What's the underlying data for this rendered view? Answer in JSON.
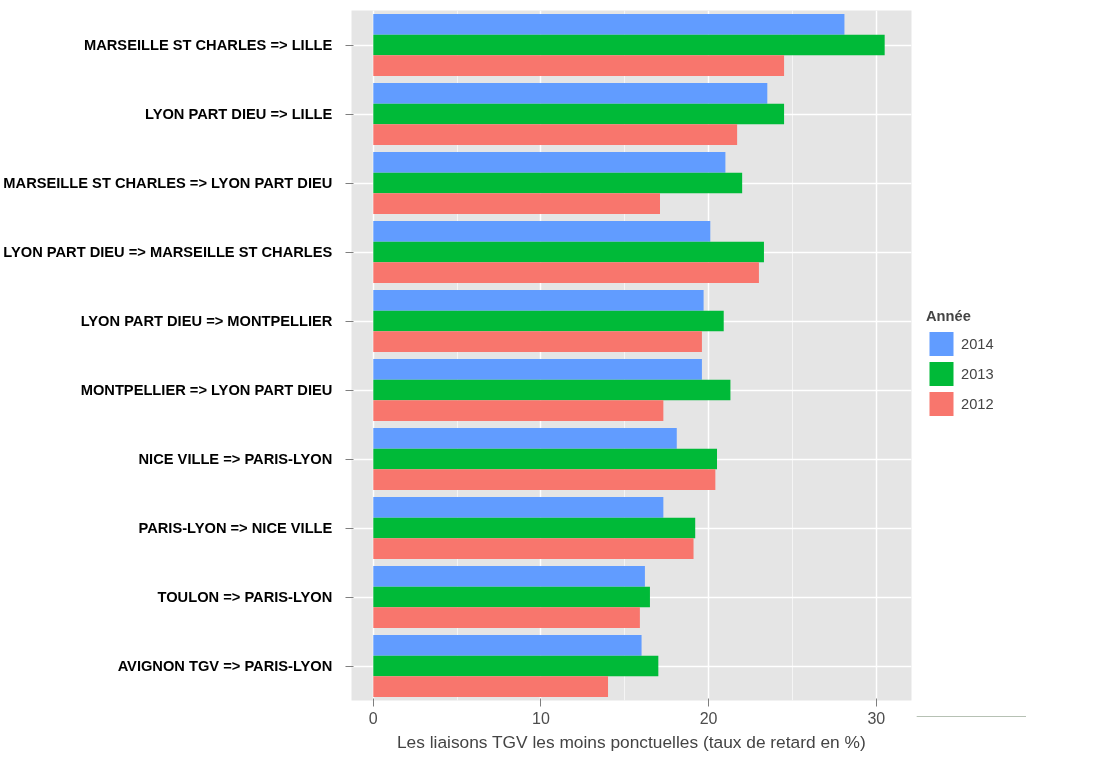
{
  "chart_data": {
    "type": "bar",
    "orientation": "horizontal",
    "xlabel": "Les liaisons TGV les moins ponctuelles (taux de retard en %)",
    "legend_title": "Année",
    "legend": "right",
    "grid": true,
    "categories": [
      "MARSEILLE ST CHARLES  =>  LILLE",
      "LYON PART DIEU  =>  LILLE",
      "MARSEILLE ST CHARLES  =>  LYON PART DIEU",
      "LYON PART DIEU  =>  MARSEILLE ST CHARLES",
      "LYON PART DIEU  =>  MONTPELLIER",
      "MONTPELLIER  =>  LYON PART DIEU",
      "NICE VILLE  =>  PARIS-LYON",
      "PARIS-LYON  =>  NICE VILLE",
      "TOULON  =>  PARIS-LYON",
      "AVIGNON TGV  =>  PARIS-LYON"
    ],
    "series": [
      {
        "name": "2014",
        "color": "#619cff",
        "values": [
          28.1,
          23.5,
          21.0,
          20.1,
          19.7,
          19.6,
          18.1,
          17.3,
          16.2,
          16.0
        ]
      },
      {
        "name": "2013",
        "color": "#00ba38",
        "values": [
          30.5,
          24.5,
          22.0,
          23.3,
          20.9,
          21.3,
          20.5,
          19.2,
          16.5,
          17.0
        ]
      },
      {
        "name": "2012",
        "color": "#f8766d",
        "values": [
          24.5,
          21.7,
          17.1,
          23.0,
          19.6,
          17.3,
          20.4,
          19.1,
          15.9,
          14.0
        ]
      }
    ],
    "xlim": [
      -1.3,
      32.1
    ],
    "xticks": [
      0,
      10,
      20,
      30
    ]
  }
}
